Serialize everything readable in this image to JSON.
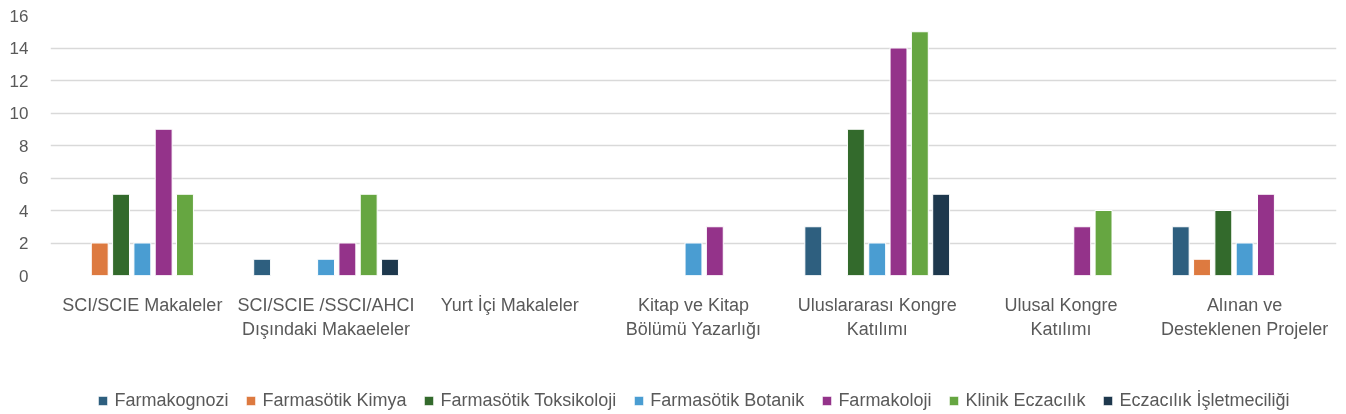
{
  "chart_data": {
    "type": "bar",
    "categories": [
      "SCI/SCIE Makaleler",
      "SCI/SCIE /SSCI/AHCI Dışındaki Makaeleler",
      "Yurt İçi Makaleler",
      "Kitap ve Kitap Bölümü Yazarlığı",
      "Uluslararası Kongre Katılımı",
      "Ulusal Kongre Katılımı",
      "Alınan ve Desteklenen Projeler"
    ],
    "series": [
      {
        "name": "Farmakognozi",
        "color": "#2e5f7f",
        "values": [
          null,
          1,
          null,
          null,
          3,
          null,
          3
        ]
      },
      {
        "name": "Farmasötik Kimya",
        "color": "#dd7a40",
        "values": [
          2,
          null,
          null,
          null,
          null,
          null,
          1
        ]
      },
      {
        "name": "Farmasötik Toksikoloji",
        "color": "#336a2c",
        "values": [
          5,
          null,
          null,
          null,
          9,
          null,
          4
        ]
      },
      {
        "name": "Farmasötik Botanik",
        "color": "#4a9dd2",
        "values": [
          2,
          1,
          null,
          2,
          2,
          null,
          2
        ]
      },
      {
        "name": "Farmakoloji",
        "color": "#94338a",
        "values": [
          9,
          2,
          null,
          3,
          14,
          3,
          5
        ]
      },
      {
        "name": "Klinik Eczacılık",
        "color": "#66a641",
        "values": [
          5,
          5,
          null,
          null,
          15,
          4,
          null
        ]
      },
      {
        "name": "Eczacılık İşletmeciliği",
        "color": "#1e384d",
        "values": [
          null,
          1,
          null,
          null,
          5,
          null,
          null
        ]
      }
    ],
    "ylim": [
      0,
      16
    ],
    "yticks": [
      0,
      2,
      4,
      6,
      8,
      10,
      12,
      14,
      16
    ],
    "grid": "y",
    "legend": "bottom"
  }
}
